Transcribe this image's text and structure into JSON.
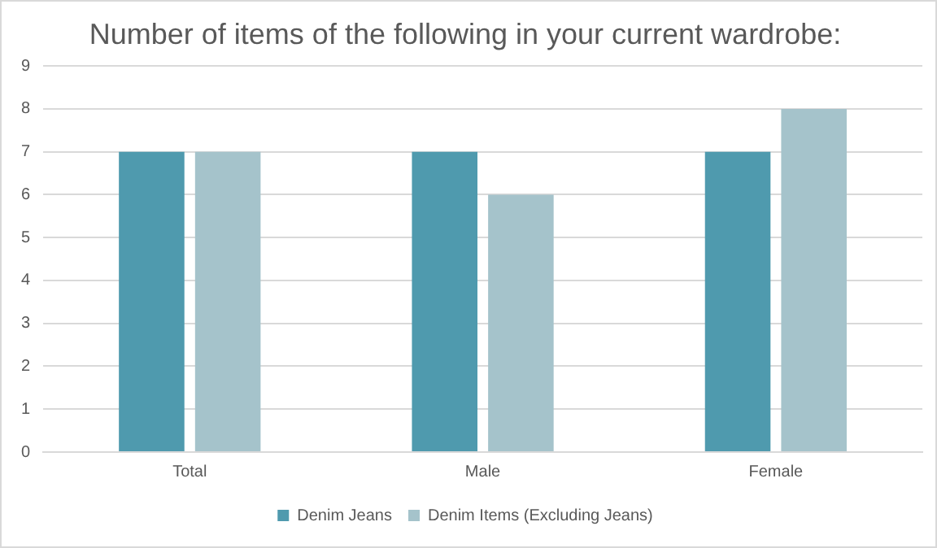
{
  "chart_data": {
    "type": "bar",
    "title": "Number of items of the following in your current wardrobe:",
    "categories": [
      "Total",
      "Male",
      "Female"
    ],
    "series": [
      {
        "name": "Denim Jeans",
        "color": "#4f9aae",
        "values": [
          7,
          7,
          7
        ]
      },
      {
        "name": "Denim Items (Excluding Jeans)",
        "color": "#a5c3cb",
        "values": [
          7,
          6,
          8
        ]
      }
    ],
    "ylim": [
      0,
      9
    ],
    "yticks": [
      0,
      1,
      2,
      3,
      4,
      5,
      6,
      7,
      8,
      9
    ],
    "grid": "y",
    "legend": "bottom"
  }
}
